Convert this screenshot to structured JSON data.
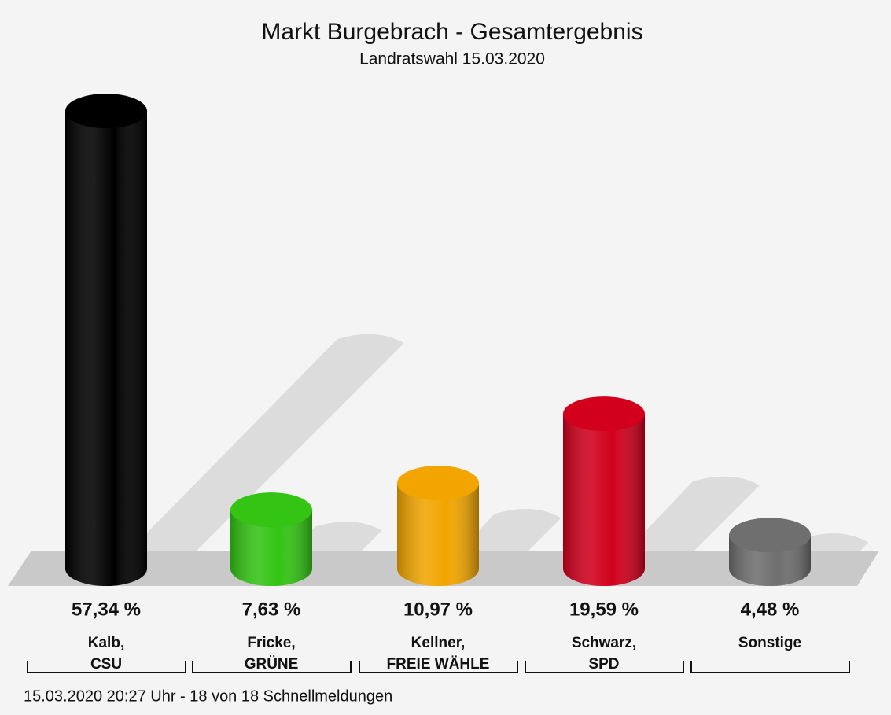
{
  "chart_data": {
    "type": "bar",
    "title": "Markt Burgebrach - Gesamtergebnis",
    "subtitle": "Landratswahl 15.03.2020",
    "categories": [
      [
        "Kalb,",
        "CSU"
      ],
      [
        "Fricke,",
        "GRÜNE"
      ],
      [
        "Kellner,",
        "FREIE WÄHLE"
      ],
      [
        "Schwarz,",
        "SPD"
      ],
      [
        "Sonstige"
      ]
    ],
    "values": [
      57.34,
      7.63,
      10.97,
      19.59,
      4.48
    ],
    "value_labels": [
      "57,34 %",
      "7,63 %",
      "10,97 %",
      "19,59 %",
      "4,48 %"
    ],
    "colors": [
      "#000000",
      "#33c414",
      "#f2a500",
      "#d2001c",
      "#6f6f6f"
    ],
    "ylim": [
      0,
      60
    ],
    "footer": "15.03.2020 20:27 Uhr - 18 von 18 Schnellmeldungen"
  }
}
